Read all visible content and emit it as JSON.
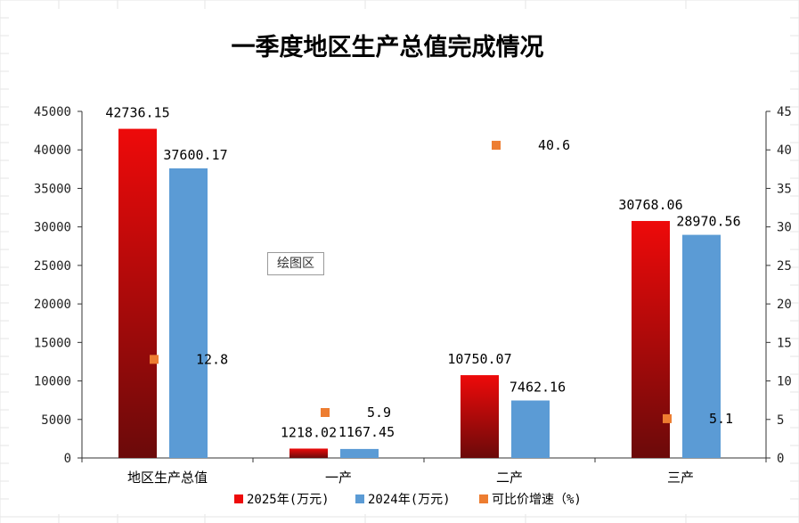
{
  "tooltip": "绘图区",
  "colors": {
    "bar_2025_top": "#ee0a0a",
    "bar_2025_bottom": "#6b0a0a",
    "bar_2024": "#5b9bd5",
    "growth_marker": "#ed7d31",
    "axis": "#333333",
    "sheet_grid": "#e6e6e6"
  },
  "chart_data": {
    "type": "bar",
    "title": "一季度地区生产总值完成情况",
    "categories": [
      "地区生产总值",
      "一产",
      "二产",
      "三产"
    ],
    "series": [
      {
        "name": "2025年(万元)",
        "axis": "left",
        "kind": "bar",
        "values": [
          42736.15,
          1218.02,
          10750.07,
          30768.06
        ],
        "labels": [
          "42736.15",
          "1218.02",
          "10750.07",
          "30768.06"
        ]
      },
      {
        "name": "2024年(万元)",
        "axis": "left",
        "kind": "bar",
        "values": [
          37600.17,
          1167.45,
          7462.16,
          28970.56
        ],
        "labels": [
          "37600.17",
          "1167.45",
          "7462.16",
          "28970.56"
        ]
      },
      {
        "name": "可比价增速（%)",
        "axis": "right",
        "kind": "scatter",
        "values": [
          12.8,
          5.9,
          40.6,
          5.1
        ],
        "labels": [
          "12.8",
          "5.9",
          "40.6",
          "5.1"
        ]
      }
    ],
    "y_left": {
      "min": 0,
      "max": 45000,
      "step": 5000,
      "ticks": [
        "0",
        "5000",
        "10000",
        "15000",
        "20000",
        "25000",
        "30000",
        "35000",
        "40000",
        "45000"
      ]
    },
    "y_right": {
      "min": 0,
      "max": 45,
      "step": 5,
      "ticks": [
        "0",
        "5",
        "10",
        "15",
        "20",
        "25",
        "30",
        "35",
        "40",
        "45"
      ]
    },
    "grid": false,
    "legend_position": "bottom"
  }
}
